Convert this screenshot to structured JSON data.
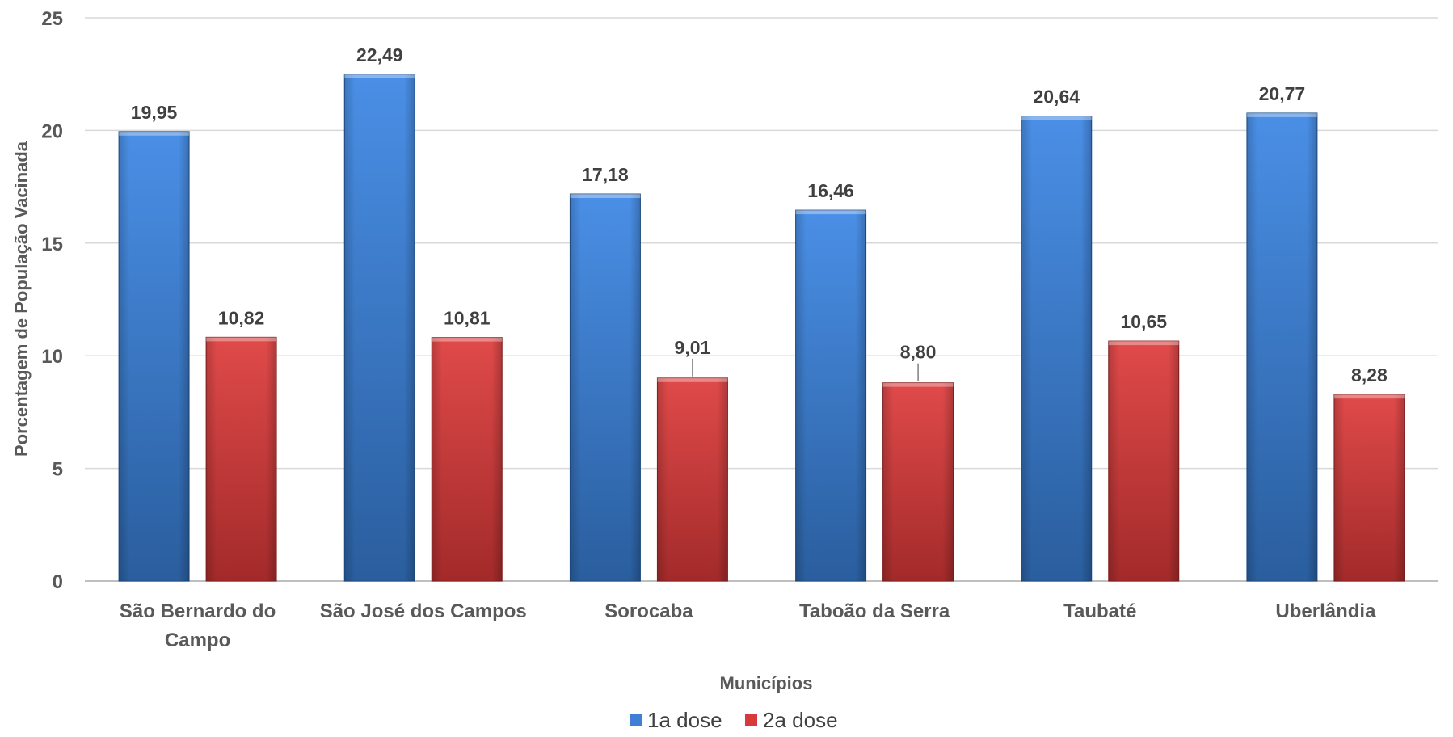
{
  "chart_data": {
    "type": "bar",
    "title": "",
    "xlabel": "Municípios",
    "ylabel": "Porcentagem de População Vacinada",
    "ylim": [
      0,
      25
    ],
    "yticks": [
      0,
      5,
      10,
      15,
      20,
      25
    ],
    "categories": [
      [
        "São Bernardo do",
        "Campo"
      ],
      [
        "São José dos Campos"
      ],
      [
        "Sorocaba"
      ],
      [
        "Taboão da Serra"
      ],
      [
        "Taubaté"
      ],
      [
        "Uberlândia"
      ]
    ],
    "series": [
      {
        "name": "1a dose",
        "color": "#3F7FD5",
        "values": [
          19.95,
          22.49,
          17.18,
          16.46,
          20.64,
          20.77
        ],
        "labels": [
          "19,95",
          "22,49",
          "17,18",
          "16,46",
          "20,64",
          "20,77"
        ]
      },
      {
        "name": "2a dose",
        "color": "#D63A3A",
        "values": [
          10.82,
          10.81,
          9.01,
          8.8,
          10.65,
          8.28
        ],
        "labels": [
          "10,82",
          "10,81",
          "9,01",
          "8,80",
          "10,65",
          "8,28"
        ]
      }
    ],
    "grid": true,
    "legend": "bottom-center"
  }
}
